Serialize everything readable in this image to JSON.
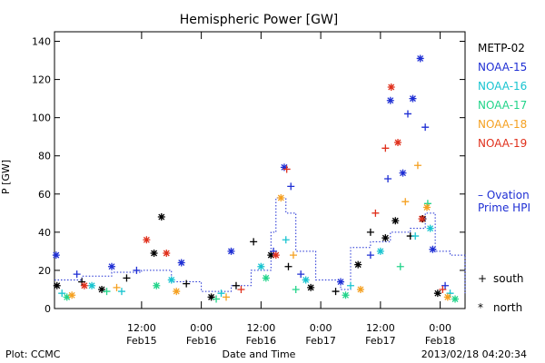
{
  "chart_data": {
    "type": "scatter",
    "title": "Hemispheric Power [GW]",
    "ylabel": "P [GW]",
    "xlabel": "Date and Time",
    "ylim": [
      0,
      145
    ],
    "xlim": [
      "2013-02-14 18:30",
      "2013-02-18 05:00"
    ],
    "y_ticks": [
      0,
      20,
      40,
      60,
      80,
      100,
      120,
      140
    ],
    "x_ticks": [
      {
        "at": "2013-02-15 12:00",
        "line1": "12:00",
        "line2": "Feb15"
      },
      {
        "at": "2013-02-16 00:00",
        "line1": "0:00",
        "line2": "Feb16"
      },
      {
        "at": "2013-02-16 12:00",
        "line1": "12:00",
        "line2": "Feb16"
      },
      {
        "at": "2013-02-17 00:00",
        "line1": "0:00",
        "line2": "Feb17"
      },
      {
        "at": "2013-02-17 12:00",
        "line1": "12:00",
        "line2": "Feb17"
      },
      {
        "at": "2013-02-18 00:00",
        "line1": "0:00",
        "line2": "Feb18"
      }
    ],
    "series": [
      {
        "name": "METP-02",
        "color": "#000000",
        "points": [
          {
            "t": "2013-02-14 19:00",
            "v": 12,
            "m": "*"
          },
          {
            "t": "2013-02-15 00:00",
            "v": 14,
            "m": "+"
          },
          {
            "t": "2013-02-15 04:00",
            "v": 10,
            "m": "*"
          },
          {
            "t": "2013-02-15 09:00",
            "v": 16,
            "m": "+"
          },
          {
            "t": "2013-02-15 14:30",
            "v": 29,
            "m": "*"
          },
          {
            "t": "2013-02-15 16:00",
            "v": 48,
            "m": "*"
          },
          {
            "t": "2013-02-15 21:00",
            "v": 13,
            "m": "+"
          },
          {
            "t": "2013-02-16 02:00",
            "v": 6,
            "m": "*"
          },
          {
            "t": "2013-02-16 07:00",
            "v": 12,
            "m": "+"
          },
          {
            "t": "2013-02-16 10:30",
            "v": 35,
            "m": "+"
          },
          {
            "t": "2013-02-16 14:00",
            "v": 28,
            "m": "*"
          },
          {
            "t": "2013-02-16 17:30",
            "v": 22,
            "m": "+"
          },
          {
            "t": "2013-02-16 22:00",
            "v": 11,
            "m": "*"
          },
          {
            "t": "2013-02-17 03:00",
            "v": 9,
            "m": "+"
          },
          {
            "t": "2013-02-17 07:30",
            "v": 23,
            "m": "*"
          },
          {
            "t": "2013-02-17 10:00",
            "v": 40,
            "m": "+"
          },
          {
            "t": "2013-02-17 13:00",
            "v": 37,
            "m": "*"
          },
          {
            "t": "2013-02-17 15:00",
            "v": 46,
            "m": "*"
          },
          {
            "t": "2013-02-17 18:00",
            "v": 38,
            "m": "+"
          },
          {
            "t": "2013-02-17 20:30",
            "v": 47,
            "m": "*"
          },
          {
            "t": "2013-02-17 23:30",
            "v": 8,
            "m": "*"
          }
        ]
      },
      {
        "name": "NOAA-15",
        "color": "#1f2fd4",
        "points": [
          {
            "t": "2013-02-14 18:50",
            "v": 28,
            "m": "*"
          },
          {
            "t": "2013-02-14 23:00",
            "v": 18,
            "m": "+"
          },
          {
            "t": "2013-02-15 06:00",
            "v": 22,
            "m": "*"
          },
          {
            "t": "2013-02-15 11:00",
            "v": 20,
            "m": "+"
          },
          {
            "t": "2013-02-15 20:00",
            "v": 24,
            "m": "*"
          },
          {
            "t": "2013-02-16 06:00",
            "v": 30,
            "m": "*"
          },
          {
            "t": "2013-02-16 14:30",
            "v": 30,
            "m": "+"
          },
          {
            "t": "2013-02-16 16:40",
            "v": 74,
            "m": "*"
          },
          {
            "t": "2013-02-16 18:00",
            "v": 64,
            "m": "+"
          },
          {
            "t": "2013-02-16 20:00",
            "v": 18,
            "m": "+"
          },
          {
            "t": "2013-02-17 04:00",
            "v": 14,
            "m": "*"
          },
          {
            "t": "2013-02-17 10:00",
            "v": 28,
            "m": "+"
          },
          {
            "t": "2013-02-17 13:30",
            "v": 68,
            "m": "+"
          },
          {
            "t": "2013-02-17 14:00",
            "v": 109,
            "m": "*"
          },
          {
            "t": "2013-02-17 16:30",
            "v": 71,
            "m": "*"
          },
          {
            "t": "2013-02-17 17:30",
            "v": 102,
            "m": "+"
          },
          {
            "t": "2013-02-17 18:30",
            "v": 110,
            "m": "*"
          },
          {
            "t": "2013-02-17 20:00",
            "v": 131,
            "m": "*"
          },
          {
            "t": "2013-02-17 21:00",
            "v": 95,
            "m": "+"
          },
          {
            "t": "2013-02-17 22:30",
            "v": 31,
            "m": "*"
          },
          {
            "t": "2013-02-18 01:00",
            "v": 12,
            "m": "+"
          }
        ]
      },
      {
        "name": "NOAA-16",
        "color": "#18c4d0",
        "points": [
          {
            "t": "2013-02-14 20:00",
            "v": 8,
            "m": "+"
          },
          {
            "t": "2013-02-15 02:00",
            "v": 12,
            "m": "*"
          },
          {
            "t": "2013-02-15 08:00",
            "v": 9,
            "m": "+"
          },
          {
            "t": "2013-02-15 18:00",
            "v": 15,
            "m": "*"
          },
          {
            "t": "2013-02-16 04:00",
            "v": 8,
            "m": "+"
          },
          {
            "t": "2013-02-16 12:00",
            "v": 22,
            "m": "*"
          },
          {
            "t": "2013-02-16 17:00",
            "v": 36,
            "m": "+"
          },
          {
            "t": "2013-02-16 21:00",
            "v": 15,
            "m": "*"
          },
          {
            "t": "2013-02-17 06:00",
            "v": 12,
            "m": "+"
          },
          {
            "t": "2013-02-17 12:00",
            "v": 30,
            "m": "*"
          },
          {
            "t": "2013-02-17 19:00",
            "v": 38,
            "m": "+"
          },
          {
            "t": "2013-02-17 22:00",
            "v": 42,
            "m": "*"
          },
          {
            "t": "2013-02-18 02:00",
            "v": 8,
            "m": "+"
          }
        ]
      },
      {
        "name": "NOAA-17",
        "color": "#22d48a",
        "points": [
          {
            "t": "2013-02-14 21:00",
            "v": 6,
            "m": "*"
          },
          {
            "t": "2013-02-15 05:00",
            "v": 9,
            "m": "+"
          },
          {
            "t": "2013-02-15 15:00",
            "v": 12,
            "m": "*"
          },
          {
            "t": "2013-02-16 03:00",
            "v": 5,
            "m": "+"
          },
          {
            "t": "2013-02-16 13:00",
            "v": 16,
            "m": "*"
          },
          {
            "t": "2013-02-16 19:00",
            "v": 10,
            "m": "+"
          },
          {
            "t": "2013-02-17 05:00",
            "v": 7,
            "m": "*"
          },
          {
            "t": "2013-02-17 16:00",
            "v": 22,
            "m": "+"
          },
          {
            "t": "2013-02-17 21:30",
            "v": 55,
            "m": "+"
          },
          {
            "t": "2013-02-18 03:00",
            "v": 5,
            "m": "*"
          }
        ]
      },
      {
        "name": "NOAA-18",
        "color": "#f5a020",
        "points": [
          {
            "t": "2013-02-14 22:00",
            "v": 7,
            "m": "*"
          },
          {
            "t": "2013-02-15 07:00",
            "v": 11,
            "m": "+"
          },
          {
            "t": "2013-02-15 19:00",
            "v": 9,
            "m": "*"
          },
          {
            "t": "2013-02-16 05:00",
            "v": 6,
            "m": "+"
          },
          {
            "t": "2013-02-16 16:00",
            "v": 58,
            "m": "*"
          },
          {
            "t": "2013-02-16 18:30",
            "v": 28,
            "m": "+"
          },
          {
            "t": "2013-02-17 08:00",
            "v": 10,
            "m": "*"
          },
          {
            "t": "2013-02-17 17:00",
            "v": 56,
            "m": "+"
          },
          {
            "t": "2013-02-17 19:30",
            "v": 75,
            "m": "+"
          },
          {
            "t": "2013-02-17 21:20",
            "v": 53,
            "m": "*"
          },
          {
            "t": "2013-02-18 01:30",
            "v": 6,
            "m": "*"
          }
        ]
      },
      {
        "name": "NOAA-19",
        "color": "#e0301c",
        "points": [
          {
            "t": "2013-02-15 00:30",
            "v": 12,
            "m": "*"
          },
          {
            "t": "2013-02-15 13:00",
            "v": 36,
            "m": "*"
          },
          {
            "t": "2013-02-15 17:00",
            "v": 29,
            "m": "*"
          },
          {
            "t": "2013-02-16 08:00",
            "v": 10,
            "m": "+"
          },
          {
            "t": "2013-02-16 17:10",
            "v": 73,
            "m": "+"
          },
          {
            "t": "2013-02-16 15:00",
            "v": 28,
            "m": "*"
          },
          {
            "t": "2013-02-17 11:00",
            "v": 50,
            "m": "+"
          },
          {
            "t": "2013-02-17 13:00",
            "v": 84,
            "m": "+"
          },
          {
            "t": "2013-02-17 14:10",
            "v": 116,
            "m": "*"
          },
          {
            "t": "2013-02-17 15:30",
            "v": 87,
            "m": "*"
          },
          {
            "t": "2013-02-17 20:20",
            "v": 47,
            "m": "*"
          },
          {
            "t": "2013-02-18 00:30",
            "v": 10,
            "m": "+"
          }
        ]
      }
    ],
    "ovation": {
      "name": "Ovation Prime HPI",
      "color": "#1f2fd4",
      "points": [
        {
          "t": "2013-02-14 18:30",
          "v": 15
        },
        {
          "t": "2013-02-15 00:00",
          "v": 17
        },
        {
          "t": "2013-02-15 06:00",
          "v": 19
        },
        {
          "t": "2013-02-15 12:00",
          "v": 20
        },
        {
          "t": "2013-02-15 18:00",
          "v": 14
        },
        {
          "t": "2013-02-16 00:00",
          "v": 9
        },
        {
          "t": "2013-02-16 06:00",
          "v": 12
        },
        {
          "t": "2013-02-16 10:00",
          "v": 20
        },
        {
          "t": "2013-02-16 14:00",
          "v": 40
        },
        {
          "t": "2013-02-16 15:00",
          "v": 58
        },
        {
          "t": "2013-02-16 17:00",
          "v": 50
        },
        {
          "t": "2013-02-16 19:00",
          "v": 30
        },
        {
          "t": "2013-02-16 23:00",
          "v": 15
        },
        {
          "t": "2013-02-17 04:00",
          "v": 10
        },
        {
          "t": "2013-02-17 06:00",
          "v": 32
        },
        {
          "t": "2013-02-17 10:00",
          "v": 35
        },
        {
          "t": "2013-02-17 14:00",
          "v": 40
        },
        {
          "t": "2013-02-17 18:00",
          "v": 42
        },
        {
          "t": "2013-02-17 21:00",
          "v": 50
        },
        {
          "t": "2013-02-17 23:00",
          "v": 30
        },
        {
          "t": "2013-02-18 02:00",
          "v": 28
        },
        {
          "t": "2013-02-18 05:00",
          "v": 8
        }
      ]
    },
    "legend_position": "right",
    "grid": false
  },
  "legend_extra": {
    "south_symbol": "+",
    "south_label": "south",
    "north_symbol": "*",
    "north_label": "north",
    "ovation_line1": "– Ovation",
    "ovation_line2": "Prime HPI"
  },
  "footer": {
    "left": "Plot: CCMC",
    "right": "2013/02/18 04:20:34"
  }
}
